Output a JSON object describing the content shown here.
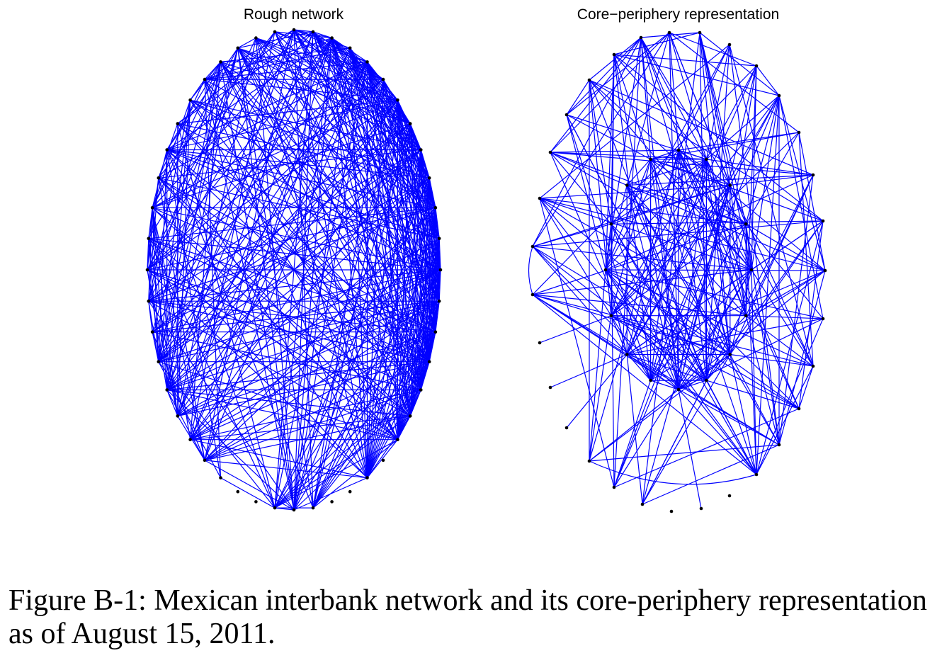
{
  "panels": [
    {
      "title": "Rough network"
    },
    {
      "title": "Core−periphery representation"
    }
  ],
  "caption": "Figure B-1: Mexican interbank network and its core-periphery representation as of August 15, 2011.",
  "colors": {
    "edge": "#0000ff",
    "node": "#000000",
    "background": "#ffffff"
  }
}
